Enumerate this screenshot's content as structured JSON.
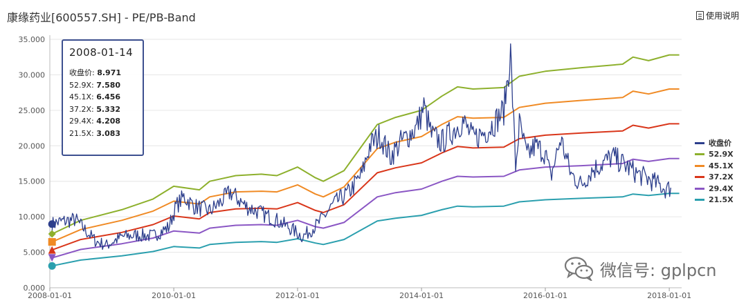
{
  "header": {
    "title": "康缘药业[600557.SH] - PE/PB-Band",
    "help_label": "使用说明",
    "help_icon": "document-icon"
  },
  "tooltip": {
    "date": "2008-01-14",
    "rows": [
      {
        "label": "收盘价: ",
        "value": "8.971"
      },
      {
        "label": "52.9X: ",
        "value": "7.580"
      },
      {
        "label": "45.1X: ",
        "value": "6.456"
      },
      {
        "label": "37.2X: ",
        "value": "5.332"
      },
      {
        "label": "29.4X: ",
        "value": "4.208"
      },
      {
        "label": "21.5X: ",
        "value": "3.083"
      }
    ]
  },
  "watermark": {
    "text": "微信号: gplpcn",
    "icon": "wechat-icon"
  },
  "chart_data": {
    "type": "line",
    "title": "",
    "xlabel": "",
    "ylabel": "",
    "x_ticks": [
      "2008-01-01",
      "2010-01-01",
      "2012-01-01",
      "2014-01-01",
      "2016-01-01",
      "2018-01-01"
    ],
    "y_ticks": [
      "0.000",
      "5.000",
      "10.000",
      "15.000",
      "20.000",
      "25.000",
      "30.000",
      "35.000"
    ],
    "ylim": [
      0,
      35
    ],
    "xlim": [
      "2008-01-01",
      "2018-03-15"
    ],
    "grid": true,
    "legend_position": "right",
    "series": [
      {
        "name": "收盘价",
        "color": "#2c3e8c",
        "marker": "circle",
        "points": [
          [
            "2008-01-14",
            8.97
          ],
          [
            "2008-03-01",
            9.3
          ],
          [
            "2008-06-01",
            9.6
          ],
          [
            "2008-08-01",
            8.0
          ],
          [
            "2008-10-01",
            6.5
          ],
          [
            "2008-12-01",
            6.0
          ],
          [
            "2009-03-01",
            7.2
          ],
          [
            "2009-06-01",
            7.4
          ],
          [
            "2009-09-01",
            7.3
          ],
          [
            "2009-12-01",
            8.5
          ],
          [
            "2010-01-15",
            11.5
          ],
          [
            "2010-03-01",
            12.8
          ],
          [
            "2010-05-01",
            11.5
          ],
          [
            "2010-08-01",
            10.8
          ],
          [
            "2010-10-01",
            12.0
          ],
          [
            "2010-12-01",
            13.5
          ],
          [
            "2011-03-01",
            11.5
          ],
          [
            "2011-06-01",
            10.5
          ],
          [
            "2011-09-01",
            9.5
          ],
          [
            "2011-12-01",
            8.2
          ],
          [
            "2012-02-01",
            7.2
          ],
          [
            "2012-05-01",
            9.0
          ],
          [
            "2012-08-01",
            11.8
          ],
          [
            "2012-11-01",
            13.5
          ],
          [
            "2013-01-15",
            16.0
          ],
          [
            "2013-03-01",
            20.0
          ],
          [
            "2013-05-01",
            21.5
          ],
          [
            "2013-07-01",
            18.5
          ],
          [
            "2013-09-01",
            20.5
          ],
          [
            "2013-12-01",
            22.5
          ],
          [
            "2014-01-15",
            25.5
          ],
          [
            "2014-03-01",
            21.5
          ],
          [
            "2014-05-01",
            20.5
          ],
          [
            "2014-07-01",
            22.0
          ],
          [
            "2014-09-01",
            23.5
          ],
          [
            "2014-11-01",
            21.0
          ],
          [
            "2015-01-15",
            22.0
          ],
          [
            "2015-03-15",
            23.5
          ],
          [
            "2015-05-01",
            25.0
          ],
          [
            "2015-06-10",
            33.0
          ],
          [
            "2015-07-10",
            17.0
          ],
          [
            "2015-08-01",
            23.0
          ],
          [
            "2015-09-15",
            18.5
          ],
          [
            "2015-11-01",
            20.0
          ],
          [
            "2016-01-01",
            19.0
          ],
          [
            "2016-02-01",
            15.5
          ],
          [
            "2016-04-01",
            21.0
          ],
          [
            "2016-06-01",
            16.0
          ],
          [
            "2016-08-01",
            14.5
          ],
          [
            "2016-10-01",
            16.5
          ],
          [
            "2016-12-01",
            17.5
          ],
          [
            "2017-02-01",
            18.5
          ],
          [
            "2017-05-01",
            17.0
          ],
          [
            "2017-07-01",
            16.0
          ],
          [
            "2017-09-01",
            15.3
          ],
          [
            "2017-11-01",
            14.5
          ],
          [
            "2017-12-15",
            13.8
          ],
          [
            "2018-01-10",
            14.1
          ]
        ]
      },
      {
        "name": "52.9X",
        "color": "#8db02c",
        "marker": "diamond",
        "points": [
          [
            "2008-01-14",
            7.58
          ],
          [
            "2008-07-01",
            9.5
          ],
          [
            "2009-03-01",
            11.0
          ],
          [
            "2009-09-01",
            12.5
          ],
          [
            "2010-01-01",
            14.3
          ],
          [
            "2010-06-01",
            13.8
          ],
          [
            "2010-08-01",
            15.0
          ],
          [
            "2011-01-01",
            15.8
          ],
          [
            "2011-06-01",
            16.0
          ],
          [
            "2011-09-01",
            15.8
          ],
          [
            "2012-01-01",
            17.0
          ],
          [
            "2012-04-15",
            15.5
          ],
          [
            "2012-06-01",
            15.0
          ],
          [
            "2012-10-01",
            16.5
          ],
          [
            "2013-04-15",
            23.0
          ],
          [
            "2013-08-01",
            24.0
          ],
          [
            "2014-01-01",
            25.0
          ],
          [
            "2014-05-01",
            27.0
          ],
          [
            "2014-08-01",
            28.3
          ],
          [
            "2014-11-01",
            28.0
          ],
          [
            "2015-05-01",
            28.2
          ],
          [
            "2015-08-01",
            29.8
          ],
          [
            "2016-01-01",
            30.5
          ],
          [
            "2016-08-01",
            31.0
          ],
          [
            "2017-04-01",
            31.5
          ],
          [
            "2017-06-01",
            32.5
          ],
          [
            "2017-09-01",
            32.0
          ],
          [
            "2018-01-01",
            32.8
          ],
          [
            "2018-03-01",
            32.8
          ]
        ]
      },
      {
        "name": "45.1X",
        "color": "#f08a24",
        "marker": "square",
        "points": [
          [
            "2008-01-14",
            6.46
          ],
          [
            "2008-07-01",
            8.2
          ],
          [
            "2009-03-01",
            9.5
          ],
          [
            "2009-09-01",
            10.8
          ],
          [
            "2010-01-01",
            12.2
          ],
          [
            "2010-06-01",
            11.8
          ],
          [
            "2010-08-01",
            12.8
          ],
          [
            "2011-01-01",
            13.5
          ],
          [
            "2011-06-01",
            13.6
          ],
          [
            "2011-09-01",
            13.5
          ],
          [
            "2012-01-01",
            14.5
          ],
          [
            "2012-04-15",
            13.2
          ],
          [
            "2012-06-01",
            12.8
          ],
          [
            "2012-10-01",
            14.2
          ],
          [
            "2013-04-15",
            19.6
          ],
          [
            "2013-08-01",
            20.5
          ],
          [
            "2014-01-01",
            21.3
          ],
          [
            "2014-05-01",
            23.0
          ],
          [
            "2014-08-01",
            24.1
          ],
          [
            "2014-11-01",
            23.9
          ],
          [
            "2015-05-01",
            24.0
          ],
          [
            "2015-08-01",
            25.4
          ],
          [
            "2016-01-01",
            26.0
          ],
          [
            "2016-08-01",
            26.4
          ],
          [
            "2017-04-01",
            26.8
          ],
          [
            "2017-06-01",
            27.7
          ],
          [
            "2017-09-01",
            27.3
          ],
          [
            "2018-01-01",
            28.0
          ],
          [
            "2018-03-01",
            28.0
          ]
        ]
      },
      {
        "name": "37.2X",
        "color": "#d9361a",
        "marker": "triangle",
        "points": [
          [
            "2008-01-14",
            5.33
          ],
          [
            "2008-07-01",
            6.8
          ],
          [
            "2009-03-01",
            7.8
          ],
          [
            "2009-09-01",
            8.9
          ],
          [
            "2010-01-01",
            10.1
          ],
          [
            "2010-06-01",
            9.7
          ],
          [
            "2010-08-01",
            10.6
          ],
          [
            "2011-01-01",
            11.1
          ],
          [
            "2011-06-01",
            11.2
          ],
          [
            "2011-09-01",
            11.1
          ],
          [
            "2012-01-01",
            12.0
          ],
          [
            "2012-04-15",
            10.9
          ],
          [
            "2012-06-01",
            10.6
          ],
          [
            "2012-10-01",
            11.7
          ],
          [
            "2013-04-15",
            16.2
          ],
          [
            "2013-08-01",
            16.9
          ],
          [
            "2014-01-01",
            17.6
          ],
          [
            "2014-05-01",
            19.0
          ],
          [
            "2014-08-01",
            19.9
          ],
          [
            "2014-11-01",
            19.7
          ],
          [
            "2015-05-01",
            19.8
          ],
          [
            "2015-08-01",
            21.0
          ],
          [
            "2016-01-01",
            21.5
          ],
          [
            "2016-08-01",
            21.8
          ],
          [
            "2017-04-01",
            22.1
          ],
          [
            "2017-06-01",
            22.9
          ],
          [
            "2017-09-01",
            22.5
          ],
          [
            "2018-01-01",
            23.1
          ],
          [
            "2018-03-01",
            23.1
          ]
        ]
      },
      {
        "name": "29.4X",
        "color": "#8a56c4",
        "marker": "triangle-down",
        "points": [
          [
            "2008-01-14",
            4.21
          ],
          [
            "2008-07-01",
            5.4
          ],
          [
            "2009-03-01",
            6.2
          ],
          [
            "2009-09-01",
            7.0
          ],
          [
            "2010-01-01",
            8.0
          ],
          [
            "2010-06-01",
            7.7
          ],
          [
            "2010-08-01",
            8.4
          ],
          [
            "2011-01-01",
            8.8
          ],
          [
            "2011-06-01",
            8.9
          ],
          [
            "2011-09-01",
            8.8
          ],
          [
            "2012-01-01",
            9.5
          ],
          [
            "2012-04-15",
            8.6
          ],
          [
            "2012-06-01",
            8.4
          ],
          [
            "2012-10-01",
            9.2
          ],
          [
            "2013-04-15",
            12.8
          ],
          [
            "2013-08-01",
            13.4
          ],
          [
            "2014-01-01",
            13.9
          ],
          [
            "2014-05-01",
            15.0
          ],
          [
            "2014-08-01",
            15.7
          ],
          [
            "2014-11-01",
            15.6
          ],
          [
            "2015-05-01",
            15.7
          ],
          [
            "2015-08-01",
            16.6
          ],
          [
            "2016-01-01",
            17.0
          ],
          [
            "2016-08-01",
            17.2
          ],
          [
            "2017-04-01",
            17.5
          ],
          [
            "2017-06-01",
            18.1
          ],
          [
            "2017-09-01",
            17.8
          ],
          [
            "2018-01-01",
            18.2
          ],
          [
            "2018-03-01",
            18.2
          ]
        ]
      },
      {
        "name": "21.5X",
        "color": "#2a9fae",
        "marker": "circle",
        "points": [
          [
            "2008-01-14",
            3.08
          ],
          [
            "2008-07-01",
            3.9
          ],
          [
            "2009-03-01",
            4.5
          ],
          [
            "2009-09-01",
            5.1
          ],
          [
            "2010-01-01",
            5.8
          ],
          [
            "2010-06-01",
            5.6
          ],
          [
            "2010-08-01",
            6.1
          ],
          [
            "2011-01-01",
            6.4
          ],
          [
            "2011-06-01",
            6.5
          ],
          [
            "2011-09-01",
            6.4
          ],
          [
            "2012-01-01",
            6.9
          ],
          [
            "2012-04-15",
            6.3
          ],
          [
            "2012-06-01",
            6.1
          ],
          [
            "2012-10-01",
            6.8
          ],
          [
            "2013-04-15",
            9.4
          ],
          [
            "2013-08-01",
            9.8
          ],
          [
            "2014-01-01",
            10.2
          ],
          [
            "2014-05-01",
            11.0
          ],
          [
            "2014-08-01",
            11.5
          ],
          [
            "2014-11-01",
            11.4
          ],
          [
            "2015-05-01",
            11.5
          ],
          [
            "2015-08-01",
            12.1
          ],
          [
            "2016-01-01",
            12.4
          ],
          [
            "2016-08-01",
            12.6
          ],
          [
            "2017-04-01",
            12.8
          ],
          [
            "2017-06-01",
            13.2
          ],
          [
            "2017-09-01",
            13.0
          ],
          [
            "2018-01-01",
            13.3
          ],
          [
            "2018-03-01",
            13.3
          ]
        ]
      }
    ]
  }
}
